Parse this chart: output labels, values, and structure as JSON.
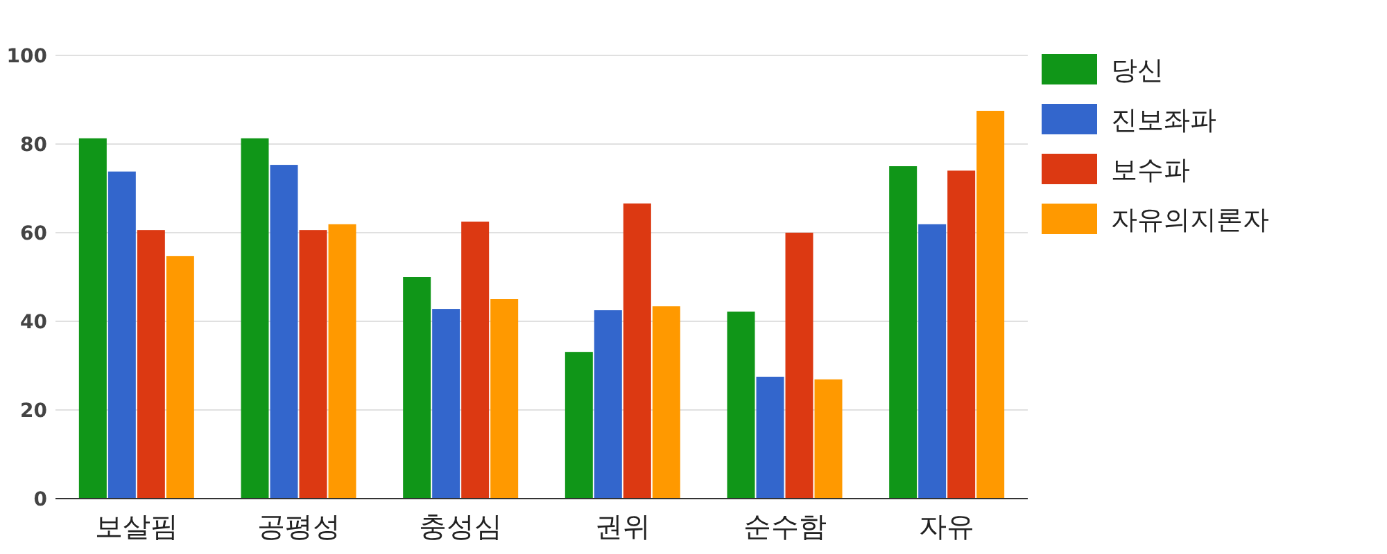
{
  "chart_data": {
    "type": "bar",
    "categories": [
      "보살핌",
      "공평성",
      "충성심",
      "권위",
      "순수함",
      "자유"
    ],
    "series": [
      {
        "name": "당신",
        "color": "#109618",
        "values": [
          81.3,
          81.3,
          50,
          33.1,
          42.2,
          75
        ]
      },
      {
        "name": "진보좌파",
        "color": "#3366cc",
        "values": [
          73.8,
          75.3,
          42.8,
          42.5,
          27.5,
          61.9
        ]
      },
      {
        "name": "보수파",
        "color": "#dc3912",
        "values": [
          60.6,
          60.6,
          62.5,
          66.6,
          60,
          74
        ]
      },
      {
        "name": "자유의지론자",
        "color": "#ff9900",
        "values": [
          54.7,
          61.9,
          45,
          43.4,
          26.9,
          87.5
        ]
      }
    ],
    "ylim": [
      0,
      100
    ],
    "yticks": [
      0,
      20,
      40,
      60,
      80,
      100
    ],
    "grid": "y",
    "legend": "top right"
  }
}
